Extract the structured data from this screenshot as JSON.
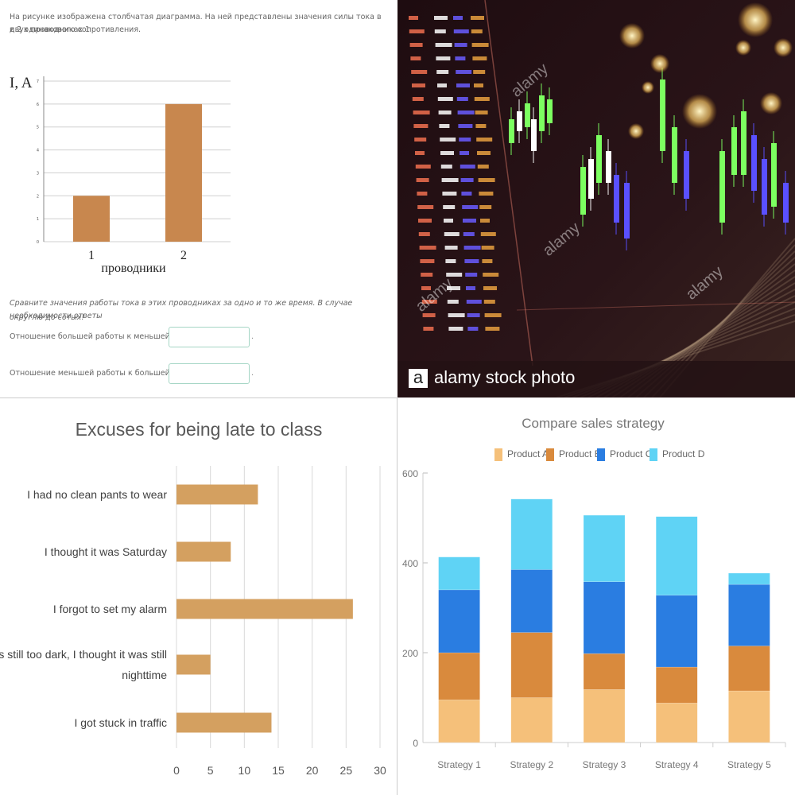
{
  "panel1": {
    "intro": [
      "На рисунке изображена столбчатая диаграмма. На ней представлены значения силы тока в двух проводниках 1",
      "и 2 одинакового сопротивления."
    ],
    "question": [
      "Сравните значения работы тока в этих проводниках за одно и то же время. В случае необходимости ответы",
      "округлю до сотых!"
    ],
    "field1_label": "Отношение большей работы к меньшей равно",
    "field2_label": "Отношение меньшей работы к большей равно",
    "field_suffix": ".",
    "field1_value": "",
    "field2_value": ""
  },
  "panel2": {
    "brand": "alamy stock photo",
    "logo_letter": "a",
    "watermark": "alamy"
  },
  "chart_data": [
    {
      "type": "bar",
      "ylabel": "I, A",
      "xlabel": "проводники",
      "categories": [
        "1",
        "2"
      ],
      "values": [
        2,
        6
      ],
      "ylim": [
        0,
        7
      ],
      "yticks": [
        "0",
        "1",
        "2",
        "3",
        "4",
        "5",
        "6",
        "7"
      ],
      "grid": true,
      "bar_color": "#c8874e"
    },
    {
      "type": "bar",
      "orientation": "horizontal",
      "title": "Excuses for being late to class",
      "categories": [
        "I had no clean pants to wear",
        "I thought it was Saturday",
        "I forgot to set my alarm",
        "It was still too dark, I thought it was still nighttime",
        "I got stuck in traffic"
      ],
      "category_lines": [
        [
          "I had no clean pants to wear"
        ],
        [
          "I thought it was Saturday"
        ],
        [
          "I forgot to set my alarm"
        ],
        [
          "It was still too dark, I thought it was still",
          "nighttime"
        ],
        [
          "I got stuck in traffic"
        ]
      ],
      "values": [
        12,
        8,
        26,
        5,
        14
      ],
      "xlim": [
        0,
        30
      ],
      "xticks": [
        "0",
        "5",
        "10",
        "15",
        "20",
        "25",
        "30"
      ],
      "grid": true,
      "bar_color": "#d4a060"
    },
    {
      "type": "bar",
      "stacked": true,
      "title": "Compare sales strategy",
      "categories": [
        "Strategy 1",
        "Strategy 2",
        "Strategy 3",
        "Strategy 4",
        "Strategy 5"
      ],
      "series": [
        {
          "name": "Product A",
          "color": "#f5c07a",
          "values": [
            95,
            100,
            118,
            88,
            115
          ]
        },
        {
          "name": "Product B",
          "color": "#d98a3d",
          "values": [
            105,
            145,
            80,
            80,
            100
          ]
        },
        {
          "name": "Product C",
          "color": "#2a7de1",
          "values": [
            140,
            140,
            160,
            160,
            137
          ]
        },
        {
          "name": "Product D",
          "color": "#5fd3f5",
          "values": [
            73,
            157,
            148,
            175,
            25
          ]
        }
      ],
      "ylim": [
        0,
        600
      ],
      "yticks": [
        "0",
        "200",
        "400",
        "600"
      ],
      "legend": "top"
    }
  ]
}
